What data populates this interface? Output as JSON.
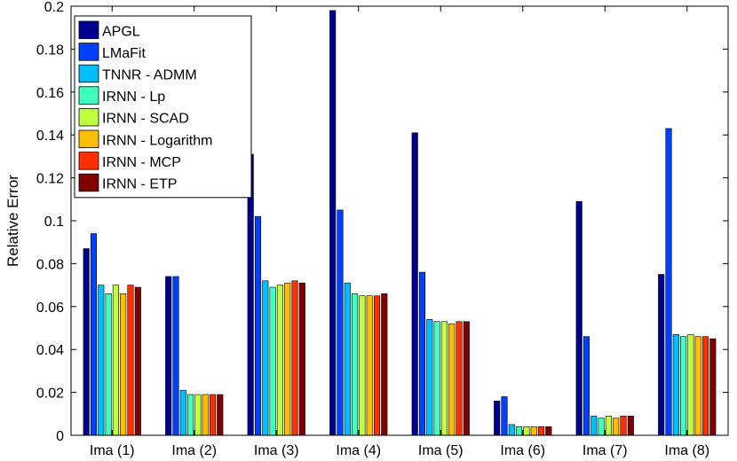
{
  "chart_data": {
    "type": "bar",
    "title": "",
    "xlabel": "",
    "ylabel": "Relative Error",
    "ylim": [
      0,
      0.2
    ],
    "yticks": [
      "0",
      "0.02",
      "0.04",
      "0.06",
      "0.08",
      "0.1",
      "0.12",
      "0.14",
      "0.16",
      "0.18",
      "0.2"
    ],
    "categories": [
      "Ima (1)",
      "Ima (2)",
      "Ima (3)",
      "Ima (4)",
      "Ima (5)",
      "Ima (6)",
      "Ima (7)",
      "Ima (8)"
    ],
    "legend_position": "top-left",
    "grid": false,
    "series": [
      {
        "name": "APGL",
        "color": "#00008f",
        "values": [
          0.087,
          0.074,
          0.131,
          0.198,
          0.141,
          0.016,
          0.109,
          0.075
        ]
      },
      {
        "name": "LMaFit",
        "color": "#0040ff",
        "values": [
          0.094,
          0.074,
          0.102,
          0.105,
          0.076,
          0.018,
          0.046,
          0.143
        ]
      },
      {
        "name": "TNNR - ADMM",
        "color": "#00bfff",
        "values": [
          0.07,
          0.021,
          0.072,
          0.071,
          0.054,
          0.005,
          0.009,
          0.047
        ]
      },
      {
        "name": "IRNN - Lp",
        "color": "#40ffbf",
        "values": [
          0.066,
          0.019,
          0.069,
          0.066,
          0.053,
          0.004,
          0.008,
          0.046
        ]
      },
      {
        "name": "IRNN - SCAD",
        "color": "#bfff40",
        "values": [
          0.07,
          0.019,
          0.07,
          0.065,
          0.053,
          0.004,
          0.009,
          0.047
        ]
      },
      {
        "name": "IRNN - Logarithm",
        "color": "#ffbf00",
        "values": [
          0.066,
          0.019,
          0.071,
          0.065,
          0.052,
          0.004,
          0.008,
          0.046
        ]
      },
      {
        "name": "IRNN - MCP",
        "color": "#ff3000",
        "values": [
          0.07,
          0.019,
          0.072,
          0.065,
          0.053,
          0.004,
          0.009,
          0.046
        ]
      },
      {
        "name": "IRNN - ETP",
        "color": "#800000",
        "values": [
          0.069,
          0.019,
          0.071,
          0.066,
          0.053,
          0.004,
          0.009,
          0.045
        ]
      }
    ]
  }
}
